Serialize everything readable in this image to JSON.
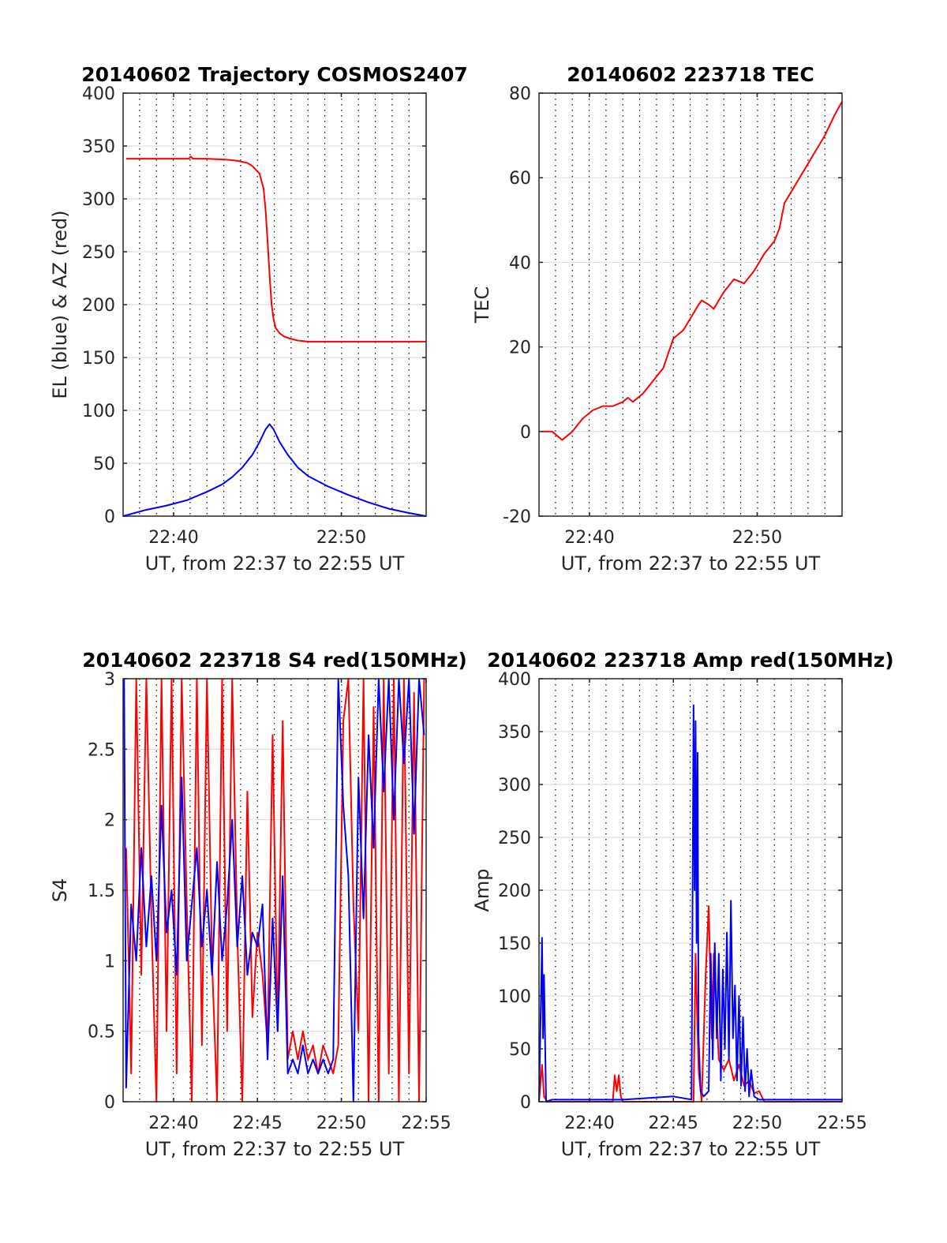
{
  "figure": {
    "background": "#ffffff",
    "line_colors": {
      "red": "#ff0000",
      "blue": "#0000ff"
    }
  },
  "chart_data": [
    {
      "type": "line",
      "title": "20140602 Trajectory COSMOS2407",
      "xlabel": "UT, from 22:37 to 22:55 UT",
      "ylabel": "EL (blue) & AZ (red)",
      "xlim": [
        22.617,
        22.917
      ],
      "ylim": [
        0,
        400
      ],
      "xticks": [
        {
          "value": 22.667,
          "label": "22:40"
        },
        {
          "value": 22.833,
          "label": "22:50"
        }
      ],
      "yticks": [
        {
          "value": 0,
          "label": "0"
        },
        {
          "value": 50,
          "label": "50"
        },
        {
          "value": 100,
          "label": "100"
        },
        {
          "value": 150,
          "label": "150"
        },
        {
          "value": 200,
          "label": "200"
        },
        {
          "value": 250,
          "label": "250"
        },
        {
          "value": 300,
          "label": "300"
        },
        {
          "value": 350,
          "label": "350"
        },
        {
          "value": 400,
          "label": "400"
        }
      ],
      "grid": true,
      "series": [
        {
          "color": "#ff0000",
          "x": [
            22.62,
            22.65,
            22.682,
            22.684,
            22.686,
            22.7,
            22.72,
            22.73,
            22.74,
            22.745,
            22.752,
            22.756,
            22.758,
            22.76,
            22.762,
            22.764,
            22.766,
            22.768,
            22.772,
            22.776,
            22.782,
            22.79,
            22.8,
            22.82,
            22.85,
            22.917
          ],
          "y": [
            338,
            338,
            338,
            340,
            338,
            338,
            337,
            336,
            334,
            331,
            324,
            310,
            290,
            260,
            228,
            200,
            186,
            178,
            173,
            170,
            168,
            166,
            165,
            165,
            165,
            165
          ]
        },
        {
          "color": "#0000ff",
          "x": [
            22.617,
            22.64,
            22.66,
            22.68,
            22.7,
            22.715,
            22.725,
            22.735,
            22.745,
            22.752,
            22.758,
            22.762,
            22.766,
            22.772,
            22.78,
            22.79,
            22.8,
            22.82,
            22.84,
            22.86,
            22.88,
            22.9,
            22.917
          ],
          "y": [
            0,
            6,
            10,
            15,
            23,
            30,
            37,
            46,
            58,
            70,
            82,
            87,
            82,
            70,
            58,
            46,
            38,
            28,
            20,
            13,
            7,
            3,
            0
          ]
        }
      ]
    },
    {
      "type": "line",
      "title": "20140602 223718 TEC",
      "xlabel": "UT, from 22:37 to 22:55 UT",
      "ylabel": "TEC",
      "xlim": [
        22.617,
        22.917
      ],
      "ylim": [
        -20,
        80
      ],
      "xticks": [
        {
          "value": 22.667,
          "label": "22:40"
        },
        {
          "value": 22.833,
          "label": "22:50"
        }
      ],
      "yticks": [
        {
          "value": -20,
          "label": "-20"
        },
        {
          "value": 0,
          "label": "0"
        },
        {
          "value": 20,
          "label": "20"
        },
        {
          "value": 40,
          "label": "40"
        },
        {
          "value": 60,
          "label": "60"
        },
        {
          "value": 80,
          "label": "80"
        }
      ],
      "grid": true,
      "series": [
        {
          "color": "#ff0000",
          "x": [
            22.62,
            22.63,
            22.64,
            22.65,
            22.66,
            22.67,
            22.68,
            22.69,
            22.7,
            22.705,
            22.71,
            22.72,
            22.73,
            22.74,
            22.75,
            22.76,
            22.77,
            22.775,
            22.778,
            22.785,
            22.79,
            22.8,
            22.81,
            22.82,
            22.83,
            22.84,
            22.85,
            22.855,
            22.86,
            22.87,
            22.88,
            22.89,
            22.9,
            22.91,
            22.917
          ],
          "y": [
            0,
            0,
            -2,
            0,
            3,
            5,
            6,
            6,
            7,
            8,
            7,
            9,
            12,
            15,
            22,
            24,
            28,
            30,
            31,
            30,
            29,
            33,
            36,
            35,
            38,
            42,
            45,
            48,
            54,
            58,
            62,
            66,
            70,
            75,
            78
          ]
        }
      ]
    },
    {
      "type": "line",
      "title": "20140602 223718 S4 red(150MHz)",
      "xlabel": "UT, from 22:37 to 22:55 UT",
      "ylabel": "S4",
      "xlim": [
        22.617,
        22.917
      ],
      "ylim": [
        0,
        3
      ],
      "xticks": [
        {
          "value": 22.667,
          "label": "22:40"
        },
        {
          "value": 22.75,
          "label": "22:45"
        },
        {
          "value": 22.833,
          "label": "22:50"
        },
        {
          "value": 22.917,
          "label": "22:55"
        }
      ],
      "yticks": [
        {
          "value": 0,
          "label": "0"
        },
        {
          "value": 0.5,
          "label": "0.5"
        },
        {
          "value": 1,
          "label": "1"
        },
        {
          "value": 1.5,
          "label": "1.5"
        },
        {
          "value": 2,
          "label": "2"
        },
        {
          "value": 2.5,
          "label": "2.5"
        },
        {
          "value": 3,
          "label": "3"
        }
      ],
      "grid": true,
      "series": [
        {
          "color": "#ff0000",
          "x": [
            22.62,
            22.625,
            22.63,
            22.635,
            22.64,
            22.645,
            22.65,
            22.655,
            22.66,
            22.665,
            22.67,
            22.675,
            22.68,
            22.685,
            22.69,
            22.695,
            22.7,
            22.705,
            22.71,
            22.715,
            22.72,
            22.725,
            22.73,
            22.735,
            22.74,
            22.745,
            22.75,
            22.755,
            22.76,
            22.765,
            22.77,
            22.775,
            22.78,
            22.785,
            22.79,
            22.795,
            22.8,
            22.805,
            22.81,
            22.815,
            22.82,
            22.825,
            22.83,
            22.835,
            22.84,
            22.845,
            22.85,
            22.855,
            22.86,
            22.865,
            22.87,
            22.875,
            22.88,
            22.885,
            22.89,
            22.895,
            22.9,
            22.905,
            22.91,
            22.915
          ],
          "y": [
            1.8,
            0.2,
            3,
            0.9,
            3,
            1.3,
            0,
            3,
            0.5,
            3,
            0.2,
            3,
            1.4,
            0,
            3,
            0.4,
            3,
            1.0,
            0,
            3,
            0.5,
            3,
            1.2,
            0,
            2.2,
            0.6,
            1.2,
            0.9,
            0.4,
            2.6,
            0.5,
            2.7,
            0.3,
            0.5,
            0.3,
            0.5,
            0.3,
            0.4,
            0.2,
            0.4,
            0.3,
            0.2,
            0.4,
            2.7,
            3,
            1.4,
            0.5,
            3,
            0,
            2.8,
            0,
            3,
            0.2,
            3,
            0,
            3,
            0.2,
            2.9,
            0,
            3
          ]
        },
        {
          "color": "#0000ff",
          "x": [
            22.618,
            22.62,
            22.625,
            22.63,
            22.635,
            22.64,
            22.645,
            22.65,
            22.655,
            22.66,
            22.665,
            22.67,
            22.675,
            22.68,
            22.685,
            22.69,
            22.695,
            22.7,
            22.705,
            22.71,
            22.715,
            22.72,
            22.725,
            22.73,
            22.735,
            22.74,
            22.745,
            22.75,
            22.755,
            22.76,
            22.765,
            22.77,
            22.775,
            22.78,
            22.785,
            22.79,
            22.795,
            22.8,
            22.805,
            22.81,
            22.815,
            22.82,
            22.825,
            22.83,
            22.835,
            22.84,
            22.845,
            22.85,
            22.855,
            22.86,
            22.865,
            22.87,
            22.875,
            22.88,
            22.885,
            22.89,
            22.895,
            22.9,
            22.905,
            22.91,
            22.915
          ],
          "y": [
            3,
            0.1,
            1.4,
            1.0,
            1.8,
            1.1,
            1.6,
            1.0,
            2.1,
            1.2,
            1.5,
            0.9,
            2.3,
            1.0,
            1.4,
            1.8,
            1.1,
            1.5,
            0.9,
            1.7,
            1.0,
            1.4,
            2.0,
            1.1,
            1.6,
            0.9,
            1.2,
            1.1,
            1.4,
            0.3,
            1.3,
            0.5,
            1.6,
            0.2,
            0.3,
            0.2,
            0.4,
            0.2,
            0.3,
            0.2,
            0.3,
            0.2,
            0.3,
            3,
            2.1,
            1.6,
            0,
            2.3,
            1.3,
            2.6,
            1.8,
            3,
            2.2,
            3,
            2.0,
            3,
            2.4,
            3,
            1.9,
            3,
            2.6
          ]
        }
      ]
    },
    {
      "type": "line",
      "title": "20140602 223718 Amp red(150MHz)",
      "xlabel": "UT, from 22:37 to 22:55 UT",
      "ylabel": "Amp",
      "xlim": [
        22.617,
        22.917
      ],
      "ylim": [
        0,
        400
      ],
      "xticks": [
        {
          "value": 22.667,
          "label": "22:40"
        },
        {
          "value": 22.75,
          "label": "22:45"
        },
        {
          "value": 22.833,
          "label": "22:50"
        },
        {
          "value": 22.917,
          "label": "22:55"
        }
      ],
      "yticks": [
        {
          "value": 0,
          "label": "0"
        },
        {
          "value": 50,
          "label": "50"
        },
        {
          "value": 100,
          "label": "100"
        },
        {
          "value": 150,
          "label": "150"
        },
        {
          "value": 200,
          "label": "200"
        },
        {
          "value": 250,
          "label": "250"
        },
        {
          "value": 300,
          "label": "300"
        },
        {
          "value": 350,
          "label": "350"
        },
        {
          "value": 400,
          "label": "400"
        }
      ],
      "grid": true,
      "series": [
        {
          "color": "#ff0000",
          "x": [
            22.617,
            22.62,
            22.622,
            22.625,
            22.69,
            22.692,
            22.694,
            22.696,
            22.698,
            22.7,
            22.77,
            22.772,
            22.775,
            22.778,
            22.782,
            22.785,
            22.788,
            22.79,
            22.795,
            22.8,
            22.805,
            22.81,
            22.815,
            22.82,
            22.825,
            22.83,
            22.835,
            22.84,
            22.85,
            22.917
          ],
          "y": [
            0,
            35,
            5,
            0,
            0,
            25,
            10,
            25,
            5,
            0,
            0,
            140,
            30,
            0,
            120,
            185,
            60,
            140,
            40,
            30,
            40,
            20,
            35,
            15,
            20,
            8,
            10,
            0,
            0,
            0
          ]
        },
        {
          "color": "#0000ff",
          "x": [
            22.617,
            22.619,
            22.62,
            22.621,
            22.622,
            22.624,
            22.63,
            22.7,
            22.75,
            22.768,
            22.77,
            22.771,
            22.772,
            22.773,
            22.774,
            22.775,
            22.777,
            22.78,
            22.785,
            22.787,
            22.789,
            22.791,
            22.793,
            22.795,
            22.797,
            22.799,
            22.801,
            22.803,
            22.805,
            22.807,
            22.809,
            22.811,
            22.813,
            22.815,
            22.817,
            22.819,
            22.821,
            22.823,
            22.825,
            22.827,
            22.83,
            22.835,
            22.84,
            22.917
          ],
          "y": [
            0,
            100,
            155,
            60,
            120,
            0,
            2,
            2,
            5,
            2,
            375,
            200,
            360,
            150,
            330,
            60,
            10,
            5,
            10,
            140,
            40,
            150,
            60,
            140,
            20,
            125,
            50,
            160,
            40,
            190,
            60,
            110,
            20,
            100,
            15,
            80,
            10,
            50,
            5,
            30,
            5,
            2,
            2,
            2
          ]
        }
      ]
    }
  ]
}
